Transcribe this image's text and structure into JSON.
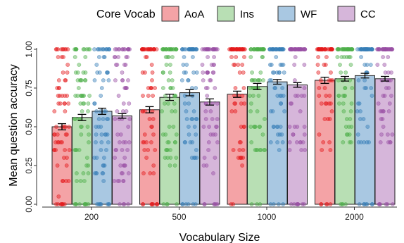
{
  "chart_data": {
    "type": "bar",
    "xlabel": "Vocabulary Size",
    "ylabel": "Mean question accuracy",
    "ylim": [
      0,
      1
    ],
    "yticks": [
      "0.00",
      "0.25",
      "0.50",
      "0.75",
      "1.00"
    ],
    "ytick_values": [
      0,
      0.25,
      0.5,
      0.75,
      1.0
    ],
    "categories": [
      "200",
      "500",
      "1000",
      "2000"
    ],
    "legend": {
      "title": "Core Vocab",
      "placement": "top"
    },
    "grid": false,
    "error_bars": true,
    "jitter_points": true,
    "series": [
      {
        "name": "AoA",
        "values": [
          0.5,
          0.61,
          0.71,
          0.8
        ],
        "errors": [
          0.02,
          0.02,
          0.02,
          0.02
        ],
        "color": "#F4A3A6",
        "point_color": "#E41A1C"
      },
      {
        "name": "Ins",
        "values": [
          0.56,
          0.69,
          0.76,
          0.81
        ],
        "errors": [
          0.02,
          0.02,
          0.02,
          0.015
        ],
        "color": "#B8DFB4",
        "point_color": "#4DAF4A"
      },
      {
        "name": "WF",
        "values": [
          0.6,
          0.72,
          0.79,
          0.83
        ],
        "errors": [
          0.02,
          0.02,
          0.015,
          0.015
        ],
        "color": "#A9C8E2",
        "point_color": "#377EB8"
      },
      {
        "name": "CC",
        "values": [
          0.57,
          0.66,
          0.77,
          0.81
        ],
        "errors": [
          0.015,
          0.02,
          0.015,
          0.015
        ],
        "color": "#D6B6DA",
        "point_color": "#984EA3"
      }
    ]
  }
}
